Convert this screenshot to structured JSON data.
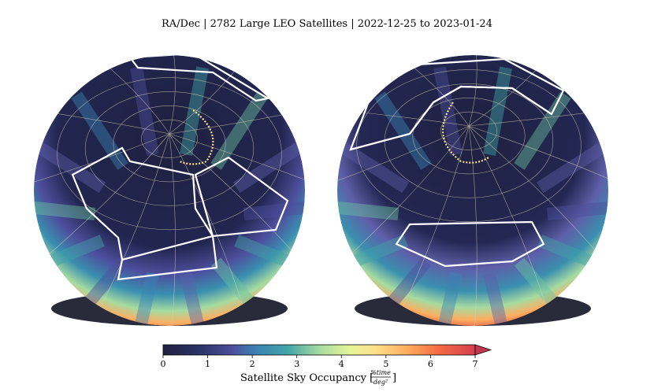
{
  "title": "RA/Dec | 2782 Large LEO Satellites | 2022-12-25 to 2023-01-24",
  "chart_data": [
    {
      "type": "heatmap",
      "name": "globe-left",
      "projection": "orthographic",
      "value_range": [
        0,
        7
      ],
      "footprint_outlines": 2,
      "description_band": "high occupancy band near lower limb"
    },
    {
      "type": "heatmap",
      "name": "globe-right",
      "projection": "orthographic",
      "value_range": [
        0,
        7
      ],
      "footprint_outlines": 2
    }
  ],
  "colorbar": {
    "min": 0,
    "max": 7,
    "ticks": [
      "0",
      "1",
      "2",
      "3",
      "4",
      "5",
      "6",
      "7"
    ],
    "label": "Satellite Sky Occupancy [",
    "unit_numerator": "%time",
    "unit_denominator": "deg²",
    "label_close": "]",
    "extend": "max",
    "colormap": [
      "#1f2140",
      "#2b3468",
      "#4d4e9c",
      "#5e5fa8",
      "#3a84b5",
      "#42a5a7",
      "#6cc4a0",
      "#a6dba0",
      "#e6f598",
      "#fee08b",
      "#fdae61",
      "#f46d43",
      "#d53e4f",
      "#c2364b"
    ]
  }
}
